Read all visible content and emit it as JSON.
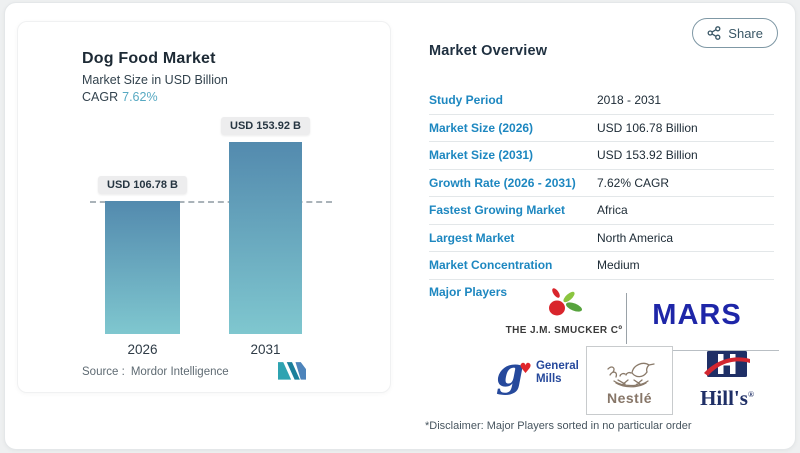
{
  "left_card": {
    "title": "Dog Food Market",
    "subtitle": "Market Size in USD Billion",
    "cagr_label": "CAGR",
    "cagr_value": "7.62%",
    "source_label": "Source :",
    "source_value": "Mordor Intelligence"
  },
  "chart_data": {
    "type": "bar",
    "title": "Dog Food Market",
    "subtitle": "Market Size in USD Billion",
    "unit": "USD Billion",
    "categories": [
      "2026",
      "2031"
    ],
    "values": [
      106.78,
      153.92
    ],
    "bar_labels": [
      "USD 106.78 B",
      "USD 153.92 B"
    ],
    "cagr": "7.62%",
    "reference_line_value": 106.78,
    "reference_line_style": "dashed",
    "bar_gradient": [
      "#538aae",
      "#7fc7cf"
    ],
    "grid": false,
    "legend": "none"
  },
  "overview": {
    "title": "Market Overview",
    "share_label": "Share",
    "rows": [
      {
        "label": "Study Period",
        "value": "2018 - 2031"
      },
      {
        "label": "Market Size (2026)",
        "value": "USD 106.78 Billion"
      },
      {
        "label": "Market Size (2031)",
        "value": "USD 153.92 Billion"
      },
      {
        "label": "Growth Rate (2026 - 2031)",
        "value": "7.62% CAGR"
      },
      {
        "label": "Fastest Growing Market",
        "value": "Africa"
      },
      {
        "label": "Largest Market",
        "value": "North America"
      },
      {
        "label": "Market Concentration",
        "value": "Medium"
      }
    ],
    "major_players": {
      "label": "Major Players",
      "smucker": "THE J.M. SMUCKER Cº",
      "mars": "MARS",
      "general_mills_monogram": "g",
      "general_mills_heart": "♥",
      "general_mills_line1": "General",
      "general_mills_line2": "Mills",
      "nestle": "Nestlé",
      "hills": "Hill's",
      "hills_reg": "®"
    },
    "disclaimer": "*Disclaimer: Major Players sorted in no particular order"
  },
  "icons": {
    "share": "share-nodes-icon",
    "mordor_logo": "mordor-intelligence-logo"
  },
  "colors": {
    "label_blue": "#1d87c0",
    "cagr_teal": "#57a9c2",
    "mars_blue": "#1e26a8",
    "general_mills_blue": "#26499c",
    "hills_navy": "#1f2f66",
    "hills_red": "#d22630",
    "nestle_taupe": "#877668",
    "smucker_red": "#d9252c"
  }
}
